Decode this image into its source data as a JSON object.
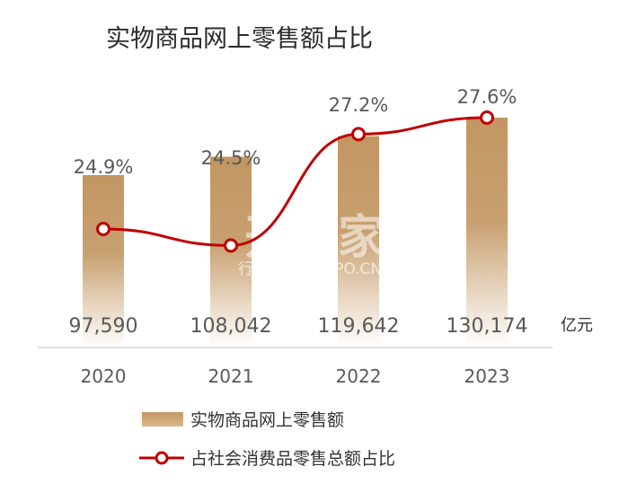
{
  "chart_data": {
    "type": "bar",
    "title": "实物商品网上零售额占比",
    "categories": [
      "2020",
      "2021",
      "2022",
      "2023"
    ],
    "unit": "亿元",
    "series": [
      {
        "name": "实物商品网上零售额",
        "kind": "bar",
        "values": [
          97590,
          108042,
          119642,
          130174
        ],
        "labels": [
          "97,590",
          "108,042",
          "119,642",
          "130,174"
        ],
        "color": "#c29661"
      },
      {
        "name": "占社会消费品零售总额占比",
        "kind": "line",
        "values": [
          24.9,
          24.5,
          27.2,
          27.6
        ],
        "labels": [
          "24.9%",
          "24.5%",
          "27.2%",
          "27.6%"
        ],
        "color": "#c00000"
      }
    ],
    "legend_position": "bottom",
    "grid": false
  },
  "watermark": {
    "main": "开购家",
    "sub": "行业报告 IPOIPO.CN"
  }
}
